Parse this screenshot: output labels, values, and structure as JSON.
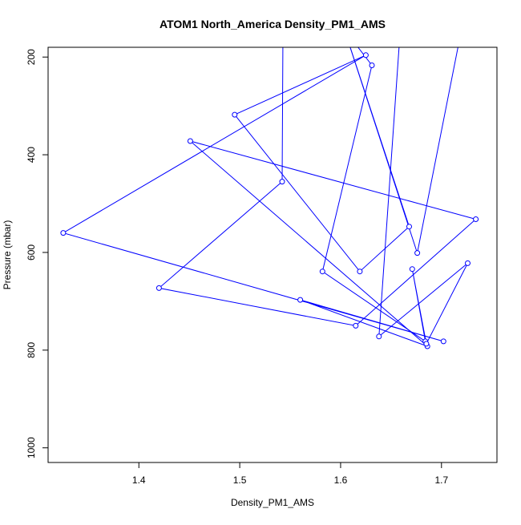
{
  "chart_data": {
    "type": "line",
    "title": "ATOM1 North_America Density_PM1_AMS",
    "xlabel": "Density_PM1_AMS",
    "ylabel": "Pressure (mbar)",
    "xlim": [
      1.31,
      1.755
    ],
    "ylim": [
      1030,
      180
    ],
    "y_reversed": true,
    "x_ticks": [
      "1.4",
      "1.5",
      "1.6",
      "1.7"
    ],
    "y_ticks": [
      "200",
      "400",
      "600",
      "800",
      "1000"
    ],
    "grid": false,
    "legend": "none",
    "series": [
      {
        "color": "#0000ff",
        "marker": "open-circle",
        "points": [
          [
            1.543,
            90
          ],
          [
            1.542,
            455
          ],
          [
            1.42,
            673
          ],
          [
            1.615,
            750
          ],
          [
            1.734,
            532
          ],
          [
            1.451,
            372
          ],
          [
            1.686,
            792
          ],
          [
            1.56,
            697
          ],
          [
            1.702,
            782
          ],
          [
            1.325,
            560
          ],
          [
            1.625,
            196
          ],
          [
            1.495,
            318
          ],
          [
            1.619,
            639
          ],
          [
            1.668,
            547
          ],
          [
            1.6,
            120
          ],
          [
            1.676,
            601
          ],
          [
            1.725,
            90
          ]
        ]
      },
      {
        "color": "#0000ff",
        "marker": "open-circle",
        "points": [
          [
            1.58,
            80
          ],
          [
            1.631,
            217
          ],
          [
            1.582,
            639
          ],
          [
            1.684,
            782
          ],
          [
            1.671,
            634
          ],
          [
            1.685,
            787
          ],
          [
            1.726,
            622
          ],
          [
            1.638,
            772
          ],
          [
            1.66,
            120
          ]
        ]
      }
    ]
  }
}
